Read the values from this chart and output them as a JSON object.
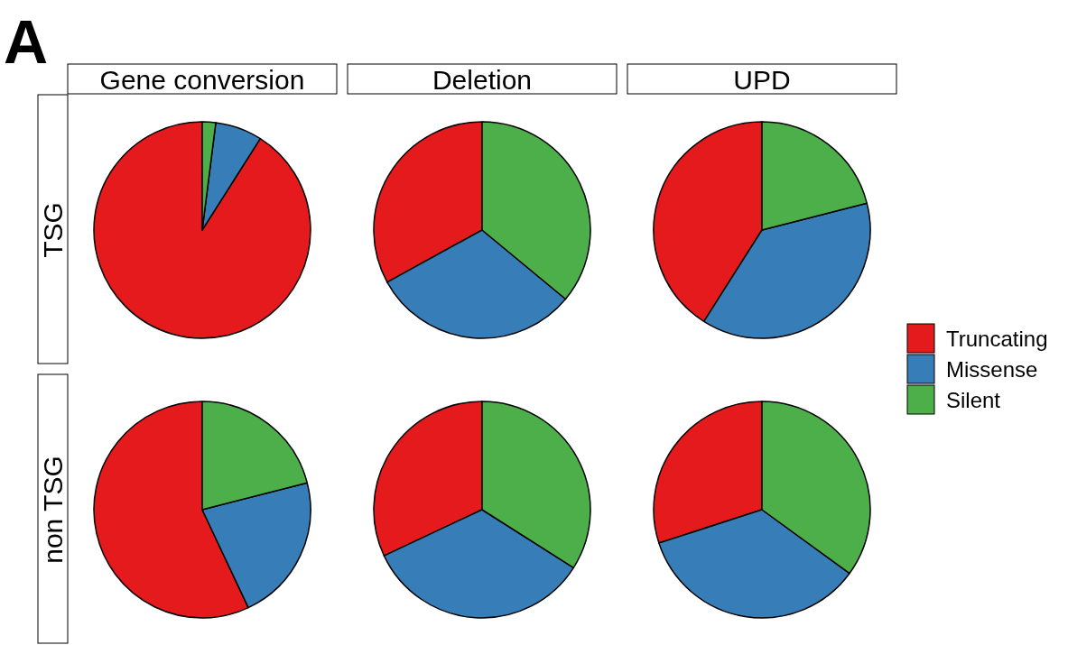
{
  "chart_data": [
    {
      "type": "pie",
      "title": "Gene conversion",
      "ylabel": "TSG",
      "annotations": [
        "A"
      ],
      "legend": "right",
      "categories": [
        "Truncating",
        "Missense",
        "Silent"
      ],
      "values": [
        91,
        7,
        2
      ],
      "colors": [
        "#e41a1c",
        "#377eb8",
        "#4daf4a"
      ]
    },
    {
      "type": "pie",
      "title": "Deletion",
      "categories": [
        null,
        null,
        null
      ],
      "values": [
        33,
        31,
        36
      ],
      "colors": [
        "#e41a1c",
        "#377eb8",
        "#4daf4a"
      ]
    },
    {
      "type": "pie",
      "title": "UPD",
      "categories": [
        null,
        null,
        null
      ],
      "values": [
        41,
        38,
        21
      ],
      "colors": [
        "#e41a1c",
        "#377eb8",
        "#4daf4a"
      ]
    },
    {
      "type": "pie",
      "ylabel": "non TSG",
      "categories": [
        null,
        null,
        null
      ],
      "values": [
        57,
        22,
        21
      ],
      "colors": [
        "#e41a1c",
        "#377eb8",
        "#4daf4a"
      ]
    },
    {
      "type": "pie",
      "categories": [
        null,
        null,
        null
      ],
      "values": [
        32,
        34,
        34
      ],
      "colors": [
        "#e41a1c",
        "#377eb8",
        "#4daf4a"
      ]
    },
    {
      "type": "pie",
      "categories": [
        null,
        null,
        null
      ],
      "values": [
        30,
        35,
        35
      ],
      "colors": [
        "#e41a1c",
        "#377eb8",
        "#4daf4a"
      ]
    }
  ]
}
